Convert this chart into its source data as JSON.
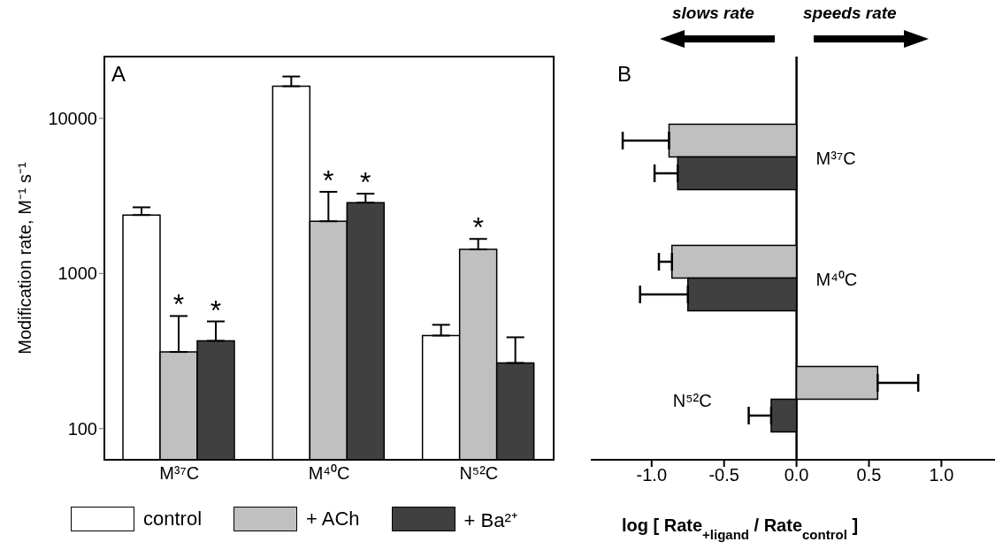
{
  "chart_data": [
    {
      "type": "bar",
      "title": "A",
      "ylabel": "Modification rate, M⁻¹ s⁻¹",
      "categories": [
        "M³⁷C",
        "M⁴⁰C",
        "N⁵²C"
      ],
      "log": "y",
      "ylim": [
        63,
        25000
      ],
      "yticks": [
        100,
        1000,
        10000
      ],
      "legend": "bottom",
      "series": [
        {
          "name": "control",
          "color": "#ffffff",
          "values": [
            2380,
            16100,
            398
          ],
          "errors": [
            [
              2380,
              2670
            ],
            [
              16100,
              18600
            ],
            [
              398,
              467
            ]
          ]
        },
        {
          "name": "+ ACh",
          "color": "#c0c0c0",
          "values": [
            312,
            2170,
            1430
          ],
          "errors": [
            [
              312,
              532
            ],
            [
              2170,
              3360
            ],
            [
              1430,
              1670
            ]
          ],
          "value_labels": [
            "*",
            "*",
            "*"
          ]
        },
        {
          "name": "+ Ba²⁺",
          "color": "#404040",
          "values": [
            368,
            2860,
            265
          ],
          "errors": [
            [
              368,
              491
            ],
            [
              2860,
              3270
            ],
            [
              265,
              388
            ]
          ],
          "value_labels": [
            "*",
            "*",
            null
          ]
        }
      ]
    },
    {
      "type": "bar",
      "orientation": "horizontal",
      "title": "B",
      "xlabel": "log [ Rate$_{+ligand}$ / Rate$_{control}$ ]",
      "categories": [
        "M³⁷C",
        "M⁴⁰C",
        "N⁵²C"
      ],
      "xlim": [
        -1.42,
        1.37
      ],
      "xticks": [
        {
          "value": -1,
          "label": "-1.0"
        },
        {
          "value": -0.5,
          "label": "-0.5"
        },
        {
          "value": 0,
          "label": "0.0"
        },
        {
          "value": 0.5,
          "label": "0.5"
        },
        {
          "value": 1,
          "label": "1.0"
        }
      ],
      "annotations": [
        "slows rate",
        "speeds rate"
      ],
      "series": [
        {
          "color": "#c0c0c0",
          "values": [
            -0.88,
            -0.86,
            0.56
          ],
          "errors": [
            [
              -1.2,
              -0.88
            ],
            [
              -0.95,
              -0.86
            ],
            [
              0.56,
              0.84
            ]
          ]
        },
        {
          "color": "#404040",
          "values": [
            -0.82,
            -0.75,
            -0.175
          ],
          "errors": [
            [
              -0.98,
              -0.82
            ],
            [
              -1.08,
              -0.75
            ],
            [
              -0.33,
              -0.175
            ]
          ]
        }
      ]
    }
  ]
}
